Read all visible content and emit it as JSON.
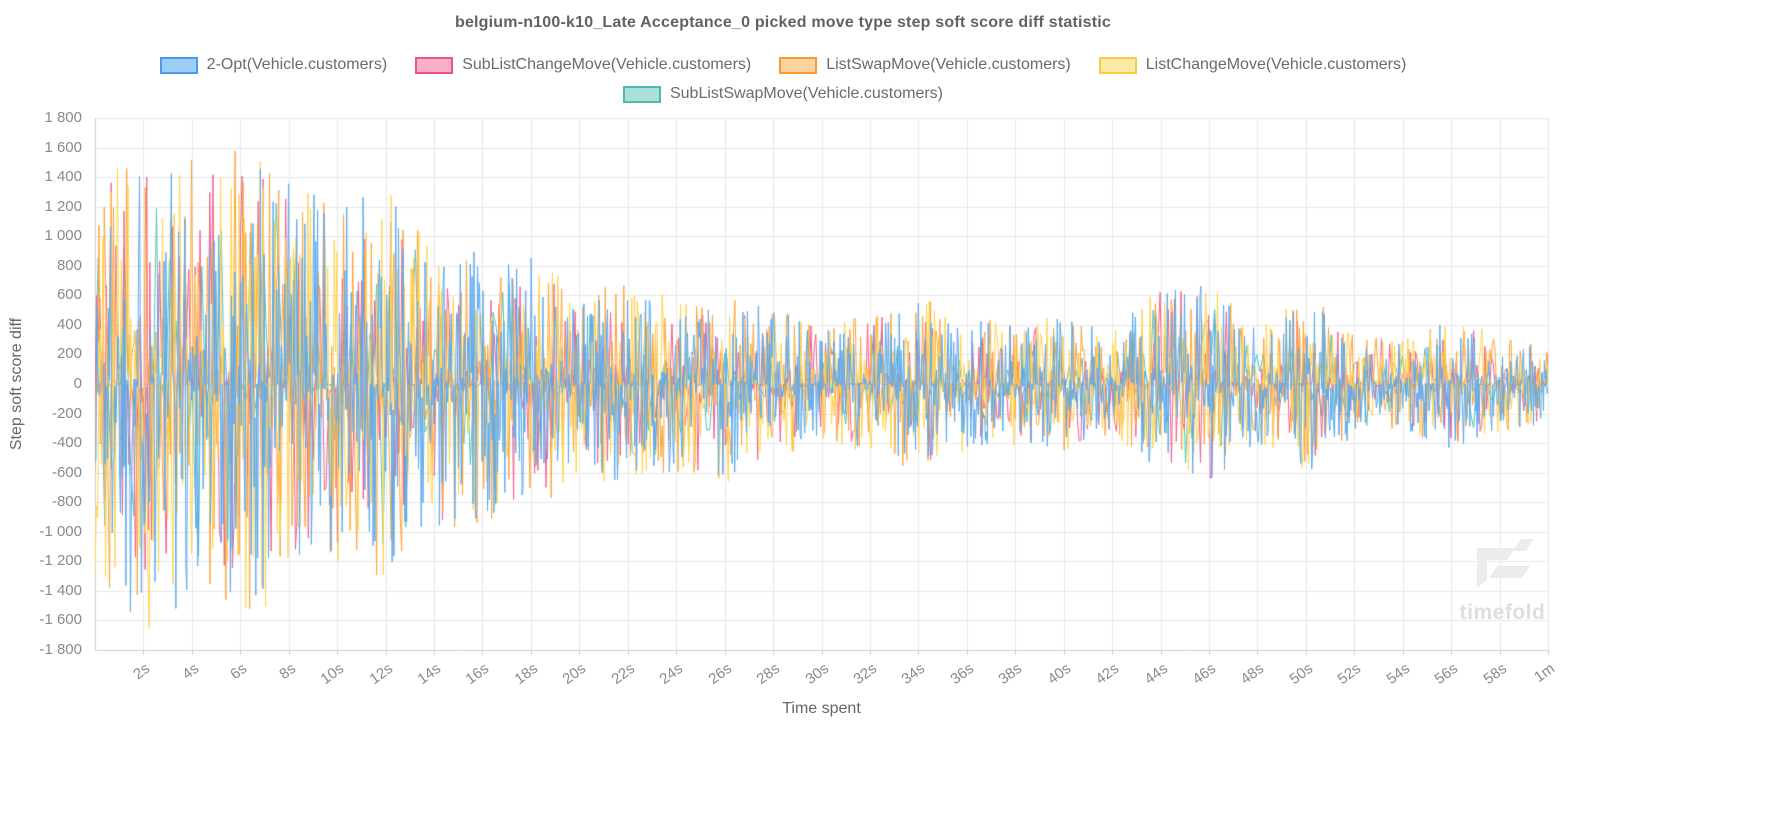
{
  "chart_data": {
    "type": "line",
    "title": "belgium-n100-k10_Late Acceptance_0 picked move type step soft score diff statistic",
    "xlabel": "Time spent",
    "ylabel": "Step soft score diff",
    "xlim": [
      0,
      60
    ],
    "ylim": [
      -1800,
      1800
    ],
    "grid": true,
    "legend_position": "top",
    "seed": 1337,
    "y_tick_values": [
      1800,
      1600,
      1400,
      1200,
      1000,
      800,
      600,
      400,
      200,
      0,
      -200,
      -400,
      -600,
      -800,
      -1000,
      -1200,
      -1400,
      -1600,
      -1800
    ],
    "y_tick_labels": [
      "1 800",
      "1 600",
      "1 400",
      "1 200",
      "1 000",
      "800",
      "600",
      "400",
      "200",
      "0",
      "-200",
      "-400",
      "-600",
      "-800",
      "-1 000",
      "-1 200",
      "-1 400",
      "-1 600",
      "-1 800"
    ],
    "x_tick_values": [
      2,
      4,
      6,
      8,
      10,
      12,
      14,
      16,
      18,
      20,
      22,
      24,
      26,
      28,
      30,
      32,
      34,
      36,
      38,
      40,
      42,
      44,
      46,
      48,
      50,
      52,
      54,
      56,
      58,
      60
    ],
    "x_tick_labels": [
      "2s",
      "4s",
      "6s",
      "8s",
      "10s",
      "12s",
      "14s",
      "16s",
      "18s",
      "20s",
      "22s",
      "24s",
      "26s",
      "28s",
      "30s",
      "32s",
      "34s",
      "36s",
      "38s",
      "40s",
      "42s",
      "44s",
      "46s",
      "48s",
      "50s",
      "52s",
      "54s",
      "56s",
      "58s",
      "1m"
    ],
    "envelope": [
      [
        0,
        1400
      ],
      [
        2,
        1800
      ],
      [
        4,
        1650
      ],
      [
        6,
        1650
      ],
      [
        8,
        1550
      ],
      [
        10,
        1250
      ],
      [
        12,
        1400
      ],
      [
        14,
        1050
      ],
      [
        16,
        1000
      ],
      [
        18,
        900
      ],
      [
        20,
        660
      ],
      [
        22,
        700
      ],
      [
        24,
        620
      ],
      [
        26,
        700
      ],
      [
        28,
        520
      ],
      [
        30,
        430
      ],
      [
        32,
        470
      ],
      [
        34,
        620
      ],
      [
        36,
        470
      ],
      [
        38,
        430
      ],
      [
        40,
        480
      ],
      [
        42,
        370
      ],
      [
        44,
        700
      ],
      [
        46,
        720
      ],
      [
        48,
        420
      ],
      [
        50,
        640
      ],
      [
        52,
        380
      ],
      [
        54,
        320
      ],
      [
        56,
        460
      ],
      [
        58,
        340
      ],
      [
        60,
        280
      ]
    ],
    "draw_order": [
      4,
      1,
      2,
      3,
      0
    ],
    "series": [
      {
        "name": "2-Opt(Vehicle.customers)",
        "line_color": "#5CA8EC",
        "swatch_fill": "#9ECDF5",
        "swatch_border": "#4C9BE8",
        "amplitude_scale": 0.95,
        "spike_sharpness": 2.0,
        "sample_count": 1600
      },
      {
        "name": "SubListChangeMove(Vehicle.customers)",
        "line_color": "#F0618F",
        "swatch_fill": "#F8AFC7",
        "swatch_border": "#EE5586",
        "amplitude_scale": 0.9,
        "spike_sharpness": 2.4,
        "sample_count": 900
      },
      {
        "name": "ListSwapMove(Vehicle.customers)",
        "line_color": "#FBA43C",
        "swatch_fill": "#FDD3A0",
        "swatch_border": "#F99C2E",
        "amplitude_scale": 0.97,
        "spike_sharpness": 2.1,
        "sample_count": 1100
      },
      {
        "name": "ListChangeMove(Vehicle.customers)",
        "line_color": "#FFD34F",
        "swatch_fill": "#FCE9A8",
        "swatch_border": "#F8CB45",
        "amplitude_scale": 0.97,
        "spike_sharpness": 2.1,
        "sample_count": 1100
      },
      {
        "name": "SubListSwapMove(Vehicle.customers)",
        "line_color": "#57C2B6",
        "swatch_fill": "#ABE0DA",
        "swatch_border": "#4EBBAE",
        "amplitude_scale": 0.78,
        "spike_sharpness": 2.8,
        "sample_count": 450
      }
    ],
    "colors": {
      "grid": "#e7e7e7",
      "axis": "#cfcfcf",
      "tick_text": "#8a8a8a",
      "title_text": "#5f6368"
    }
  },
  "legend": {
    "row_item_counts": [
      4,
      1
    ]
  },
  "watermark": {
    "text": "timefold"
  }
}
